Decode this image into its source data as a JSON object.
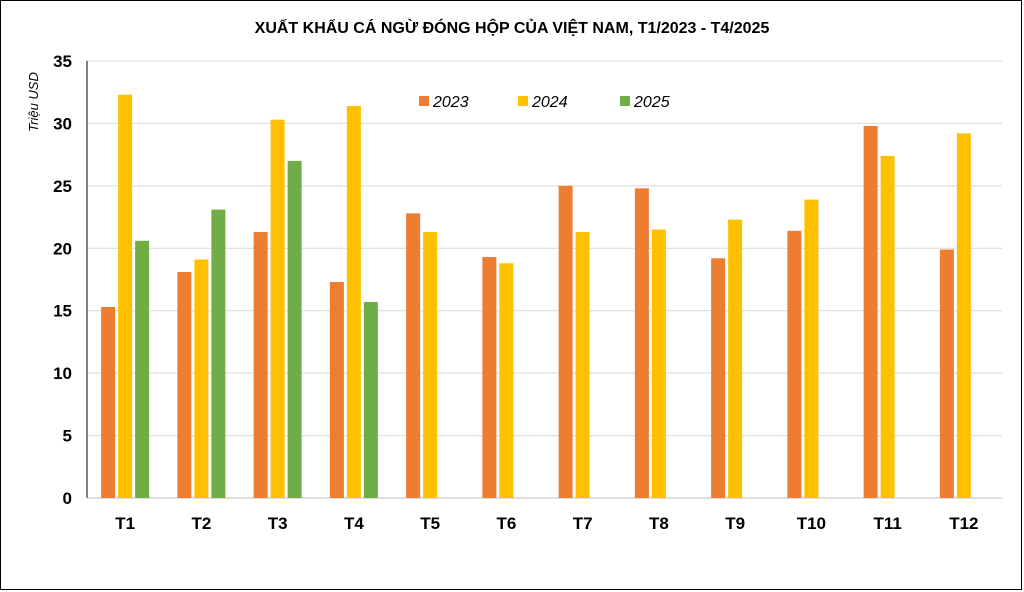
{
  "chart_data": {
    "type": "bar",
    "title": "XUẤT KHẨU CÁ NGỪ ĐÓNG HỘP CỦA VIỆT NAM, T1/2023 - T4/2025",
    "xlabel": "",
    "ylabel": "Triệu USD",
    "ylim": [
      0,
      35
    ],
    "yticks": [
      0,
      5,
      10,
      15,
      20,
      25,
      30,
      35
    ],
    "grid": true,
    "legend_position": "top-center",
    "categories": [
      "T1",
      "T2",
      "T3",
      "T4",
      "T5",
      "T6",
      "T7",
      "T8",
      "T9",
      "T10",
      "T11",
      "T12"
    ],
    "series": [
      {
        "name": "2023",
        "color": "#ED7D31",
        "values": [
          15.3,
          18.1,
          21.3,
          17.3,
          22.8,
          19.3,
          25.0,
          24.8,
          19.2,
          21.4,
          29.8,
          19.9
        ]
      },
      {
        "name": "2024",
        "color": "#FFC000",
        "values": [
          32.3,
          19.1,
          30.3,
          31.4,
          21.3,
          18.8,
          21.3,
          21.5,
          22.3,
          23.9,
          27.4,
          29.2
        ]
      },
      {
        "name": "2025",
        "color": "#70AD47",
        "values": [
          20.6,
          23.1,
          27.0,
          15.7,
          null,
          null,
          null,
          null,
          null,
          null,
          null,
          null
        ]
      }
    ]
  }
}
